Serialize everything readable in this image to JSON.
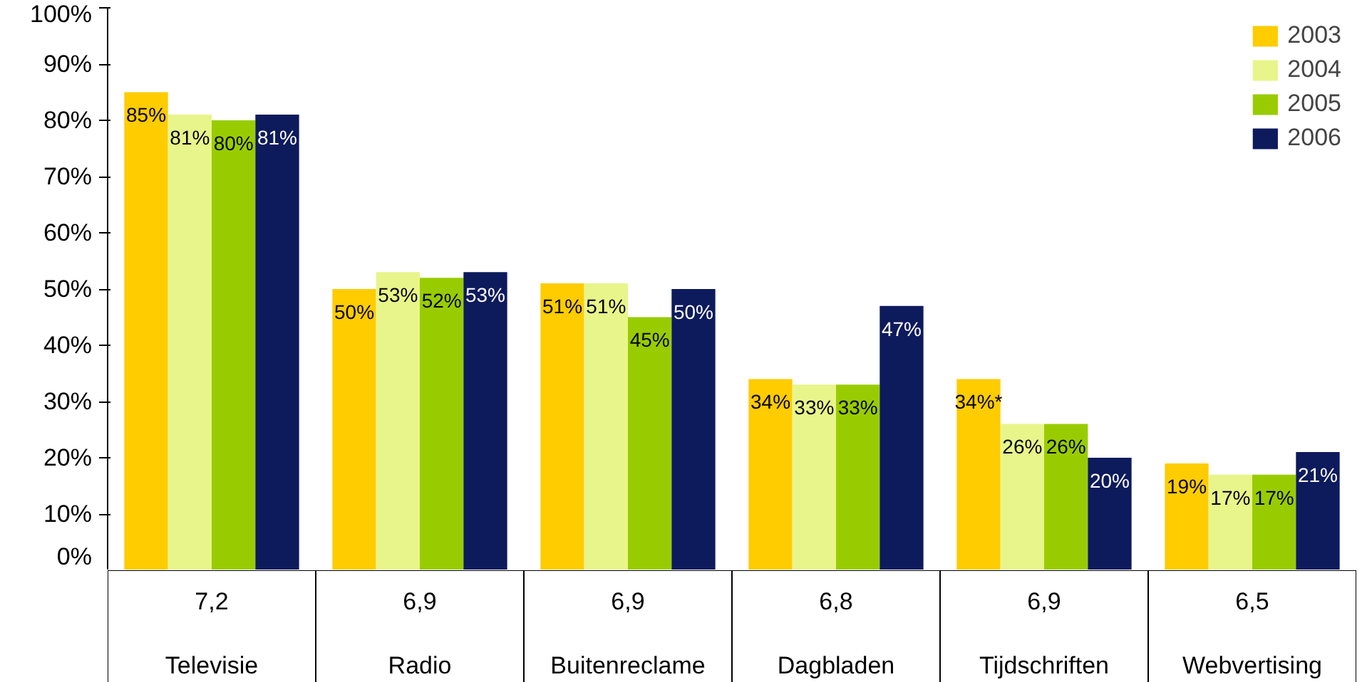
{
  "chart_data": {
    "type": "bar",
    "categories": [
      "Televisie",
      "Radio",
      "Buitenreclame",
      "Dagbladen",
      "Tijdschriften",
      "Webvertising"
    ],
    "annotations": [
      "7,2",
      "6,9",
      "6,9",
      "6,8",
      "6,9",
      "6,5"
    ],
    "ylim": [
      0,
      100
    ],
    "yticks": [
      {
        "value": 0,
        "label": "0%"
      },
      {
        "value": 10,
        "label": "10%"
      },
      {
        "value": 20,
        "label": "20%"
      },
      {
        "value": 30,
        "label": "30%"
      },
      {
        "value": 40,
        "label": "40%"
      },
      {
        "value": 50,
        "label": "50%"
      },
      {
        "value": 60,
        "label": "60%"
      },
      {
        "value": 70,
        "label": "70%"
      },
      {
        "value": 80,
        "label": "80%"
      },
      {
        "value": 90,
        "label": "90%"
      },
      {
        "value": 100,
        "label": "100%"
      }
    ],
    "legend": "top right",
    "series": [
      {
        "name": "2003",
        "color": "#ffcc00",
        "values": [
          85,
          50,
          51,
          34,
          34,
          19
        ],
        "value_labels": [
          "85%",
          "50%",
          "51%",
          "34%",
          "34%*",
          "19%"
        ]
      },
      {
        "name": "2004",
        "color": "#e8f58a",
        "values": [
          81,
          53,
          51,
          33,
          26,
          17
        ],
        "value_labels": [
          "81%",
          "53%",
          "51%",
          "33%",
          "26%",
          "17%"
        ]
      },
      {
        "name": "2005",
        "color": "#99cc00",
        "values": [
          80,
          52,
          45,
          33,
          26,
          17
        ],
        "value_labels": [
          "80%",
          "52%",
          "45%",
          "33%",
          "26%",
          "17%"
        ]
      },
      {
        "name": "2006",
        "color": "#0d1a5c",
        "values": [
          81,
          53,
          50,
          47,
          20,
          21
        ],
        "value_labels": [
          "81%",
          "53%",
          "50%",
          "47%",
          "20%",
          "21%"
        ]
      }
    ]
  }
}
